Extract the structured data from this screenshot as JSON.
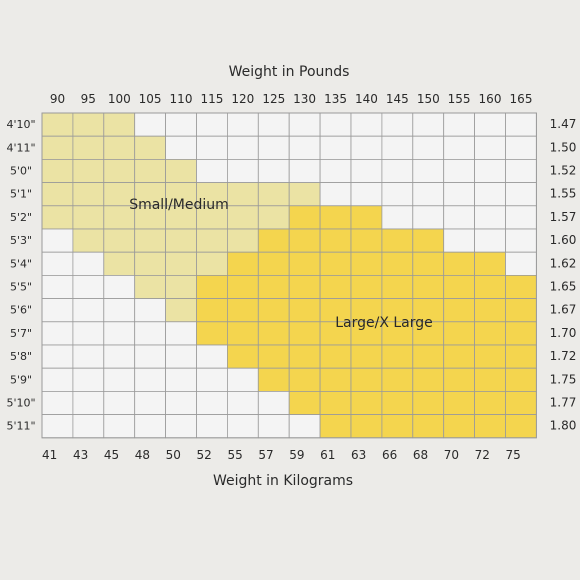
{
  "chart_data": {
    "type": "heatmap",
    "title_top": "Weight in Pounds",
    "title_bottom": "Weight in Kilograms",
    "pounds": [
      "90",
      "95",
      "100",
      "105",
      "110",
      "115",
      "120",
      "125",
      "130",
      "135",
      "140",
      "145",
      "150",
      "155",
      "160",
      "165"
    ],
    "kilograms": [
      "41",
      "43",
      "45",
      "48",
      "50",
      "52",
      "55",
      "57",
      "59",
      "61",
      "63",
      "66",
      "68",
      "70",
      "72",
      "75"
    ],
    "heights_ft_in": [
      "4'10\"",
      "4'11\"",
      "5'0\"",
      "5'1\"",
      "5'2\"",
      "5'3\"",
      "5'4\"",
      "5'5\"",
      "5'6\"",
      "5'7\"",
      "5'8\"",
      "5'9\"",
      "5'10\"",
      "5'11\""
    ],
    "heights_m": [
      "1.47",
      "1.50",
      "1.52",
      "1.55",
      "1.57",
      "1.60",
      "1.62",
      "1.65",
      "1.67",
      "1.70",
      "1.72",
      "1.75",
      "1.77",
      "1.80"
    ],
    "regions": {
      "small_medium": {
        "label": "Small/Medium",
        "color": "#ebe3a4",
        "code": 1
      },
      "large_xlarge": {
        "label": "Large/X Large",
        "color": "#f4d54e",
        "code": 2
      }
    },
    "empty_color": "#f4f4f4",
    "grid_color": "#9a9a9a",
    "cells": [
      [
        1,
        1,
        1,
        0,
        0,
        0,
        0,
        0,
        0,
        0,
        0,
        0,
        0,
        0,
        0,
        0
      ],
      [
        1,
        1,
        1,
        1,
        0,
        0,
        0,
        0,
        0,
        0,
        0,
        0,
        0,
        0,
        0,
        0
      ],
      [
        1,
        1,
        1,
        1,
        1,
        0,
        0,
        0,
        0,
        0,
        0,
        0,
        0,
        0,
        0,
        0
      ],
      [
        1,
        1,
        1,
        1,
        1,
        1,
        1,
        1,
        1,
        0,
        0,
        0,
        0,
        0,
        0,
        0
      ],
      [
        1,
        1,
        1,
        1,
        1,
        1,
        1,
        1,
        2,
        2,
        2,
        0,
        0,
        0,
        0,
        0
      ],
      [
        0,
        1,
        1,
        1,
        1,
        1,
        1,
        2,
        2,
        2,
        2,
        2,
        2,
        0,
        0,
        0
      ],
      [
        0,
        0,
        1,
        1,
        1,
        1,
        2,
        2,
        2,
        2,
        2,
        2,
        2,
        2,
        2,
        0
      ],
      [
        0,
        0,
        0,
        1,
        1,
        2,
        2,
        2,
        2,
        2,
        2,
        2,
        2,
        2,
        2,
        2
      ],
      [
        0,
        0,
        0,
        0,
        1,
        2,
        2,
        2,
        2,
        2,
        2,
        2,
        2,
        2,
        2,
        2
      ],
      [
        0,
        0,
        0,
        0,
        0,
        2,
        2,
        2,
        2,
        2,
        2,
        2,
        2,
        2,
        2,
        2
      ],
      [
        0,
        0,
        0,
        0,
        0,
        0,
        2,
        2,
        2,
        2,
        2,
        2,
        2,
        2,
        2,
        2
      ],
      [
        0,
        0,
        0,
        0,
        0,
        0,
        0,
        2,
        2,
        2,
        2,
        2,
        2,
        2,
        2,
        2
      ],
      [
        0,
        0,
        0,
        0,
        0,
        0,
        0,
        0,
        2,
        2,
        2,
        2,
        2,
        2,
        2,
        2
      ],
      [
        0,
        0,
        0,
        0,
        0,
        0,
        0,
        0,
        0,
        2,
        2,
        2,
        2,
        2,
        2,
        2
      ]
    ]
  }
}
